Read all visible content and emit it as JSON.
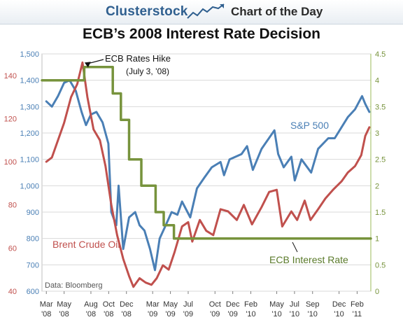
{
  "header": {
    "brand": "Clusterstock",
    "tagline": "Chart of the Day",
    "logo_icon": "rising-chart-icon"
  },
  "chart_data": {
    "type": "line",
    "title": "ECB’s 2008 Interest Rate Decision",
    "source_note": "Data: Bloomberg",
    "x_tick_labels": [
      {
        "month": "Mar",
        "year": "'08"
      },
      {
        "month": "May",
        "year": "'08"
      },
      {
        "month": "Aug",
        "year": "'08"
      },
      {
        "month": "Oct",
        "year": "'08"
      },
      {
        "month": "Dec",
        "year": "'08"
      },
      {
        "month": "Mar",
        "year": "'09"
      },
      {
        "month": "May",
        "year": "'09"
      },
      {
        "month": "Jul",
        "year": "'09"
      },
      {
        "month": "Oct",
        "year": "'09"
      },
      {
        "month": "Dec",
        "year": "'09"
      },
      {
        "month": "Feb",
        "year": "'10"
      },
      {
        "month": "May",
        "year": "'10"
      },
      {
        "month": "Jul",
        "year": "'10"
      },
      {
        "month": "Sep",
        "year": "'10"
      },
      {
        "month": "Dec",
        "year": "'10"
      },
      {
        "month": "Feb",
        "year": "'11"
      }
    ],
    "x_tick_dates": [
      "2008-03-01",
      "2008-05-01",
      "2008-08-01",
      "2008-10-01",
      "2008-12-01",
      "2009-03-01",
      "2009-05-01",
      "2009-07-01",
      "2009-10-01",
      "2009-12-01",
      "2010-02-01",
      "2010-05-01",
      "2010-07-01",
      "2010-09-01",
      "2010-12-01",
      "2011-02-01"
    ],
    "x_range": [
      "2008-02-15",
      "2011-03-20"
    ],
    "axes": {
      "sp500": {
        "ticks": [
          "600",
          "700",
          "800",
          "900",
          "1,000",
          "1,100",
          "1,200",
          "1,300",
          "1,400",
          "1,500"
        ],
        "range": [
          600,
          1500
        ],
        "color": "#4a7fb5"
      },
      "oil": {
        "ticks": [
          "40",
          "60",
          "80",
          "100",
          "120",
          "140"
        ],
        "range": [
          40,
          150
        ],
        "color": "#c0504d"
      },
      "rate": {
        "ticks": [
          "0",
          "0.5",
          "1",
          "1.5",
          "2",
          "2.5",
          "3",
          "3.5",
          "4",
          "4.5"
        ],
        "range": [
          0,
          4.5
        ],
        "color": "#77933c"
      }
    },
    "series": [
      {
        "name": "S&P 500",
        "axis": "sp500",
        "color": "#4a7fb5",
        "points": [
          [
            "2008-03-01",
            1320
          ],
          [
            "2008-03-20",
            1300
          ],
          [
            "2008-04-10",
            1340
          ],
          [
            "2008-05-01",
            1390
          ],
          [
            "2008-05-20",
            1400
          ],
          [
            "2008-06-10",
            1360
          ],
          [
            "2008-06-30",
            1280
          ],
          [
            "2008-07-15",
            1230
          ],
          [
            "2008-08-01",
            1270
          ],
          [
            "2008-08-20",
            1280
          ],
          [
            "2008-09-10",
            1240
          ],
          [
            "2008-09-30",
            1160
          ],
          [
            "2008-10-10",
            900
          ],
          [
            "2008-10-27",
            850
          ],
          [
            "2008-11-04",
            1000
          ],
          [
            "2008-11-20",
            760
          ],
          [
            "2008-12-10",
            880
          ],
          [
            "2008-12-31",
            900
          ],
          [
            "2009-01-15",
            850
          ],
          [
            "2009-02-01",
            830
          ],
          [
            "2009-02-20",
            760
          ],
          [
            "2009-03-09",
            680
          ],
          [
            "2009-03-25",
            800
          ],
          [
            "2009-04-15",
            850
          ],
          [
            "2009-05-05",
            900
          ],
          [
            "2009-05-25",
            890
          ],
          [
            "2009-06-10",
            940
          ],
          [
            "2009-07-08",
            880
          ],
          [
            "2009-07-31",
            990
          ],
          [
            "2009-08-25",
            1030
          ],
          [
            "2009-09-20",
            1070
          ],
          [
            "2009-10-20",
            1090
          ],
          [
            "2009-11-01",
            1040
          ],
          [
            "2009-11-20",
            1100
          ],
          [
            "2009-12-31",
            1120
          ],
          [
            "2010-01-19",
            1150
          ],
          [
            "2010-02-08",
            1060
          ],
          [
            "2010-03-10",
            1140
          ],
          [
            "2010-04-23",
            1210
          ],
          [
            "2010-05-06",
            1120
          ],
          [
            "2010-05-25",
            1070
          ],
          [
            "2010-06-20",
            1110
          ],
          [
            "2010-07-02",
            1020
          ],
          [
            "2010-07-25",
            1100
          ],
          [
            "2010-08-27",
            1050
          ],
          [
            "2010-09-20",
            1140
          ],
          [
            "2010-10-25",
            1180
          ],
          [
            "2010-11-16",
            1180
          ],
          [
            "2010-12-31",
            1260
          ],
          [
            "2011-01-25",
            1290
          ],
          [
            "2011-02-18",
            1340
          ],
          [
            "2011-03-01",
            1310
          ],
          [
            "2011-03-15",
            1280
          ]
        ]
      },
      {
        "name": "Brent Crude Oil",
        "axis": "oil",
        "color": "#c0504d",
        "points": [
          [
            "2008-03-01",
            100
          ],
          [
            "2008-03-20",
            102
          ],
          [
            "2008-04-10",
            110
          ],
          [
            "2008-05-01",
            118
          ],
          [
            "2008-05-25",
            130
          ],
          [
            "2008-06-15",
            136
          ],
          [
            "2008-07-03",
            146
          ],
          [
            "2008-07-20",
            130
          ],
          [
            "2008-08-10",
            115
          ],
          [
            "2008-09-01",
            110
          ],
          [
            "2008-09-20",
            98
          ],
          [
            "2008-10-10",
            80
          ],
          [
            "2008-10-30",
            66
          ],
          [
            "2008-11-20",
            55
          ],
          [
            "2008-12-10",
            47
          ],
          [
            "2008-12-25",
            42
          ],
          [
            "2009-01-15",
            46
          ],
          [
            "2009-02-05",
            44
          ],
          [
            "2009-02-25",
            43
          ],
          [
            "2009-03-15",
            46
          ],
          [
            "2009-04-05",
            52
          ],
          [
            "2009-04-25",
            50
          ],
          [
            "2009-05-15",
            58
          ],
          [
            "2009-06-10",
            70
          ],
          [
            "2009-07-01",
            72
          ],
          [
            "2009-07-15",
            63
          ],
          [
            "2009-08-10",
            73
          ],
          [
            "2009-09-01",
            68
          ],
          [
            "2009-09-25",
            66
          ],
          [
            "2009-10-20",
            78
          ],
          [
            "2009-11-15",
            77
          ],
          [
            "2009-12-15",
            73
          ],
          [
            "2010-01-08",
            80
          ],
          [
            "2010-02-05",
            71
          ],
          [
            "2010-03-10",
            79
          ],
          [
            "2010-04-05",
            86
          ],
          [
            "2010-05-01",
            87
          ],
          [
            "2010-05-20",
            70
          ],
          [
            "2010-06-20",
            77
          ],
          [
            "2010-07-10",
            73
          ],
          [
            "2010-08-05",
            82
          ],
          [
            "2010-08-25",
            73
          ],
          [
            "2010-09-20",
            78
          ],
          [
            "2010-10-15",
            83
          ],
          [
            "2010-11-10",
            87
          ],
          [
            "2010-12-10",
            91
          ],
          [
            "2010-12-31",
            95
          ],
          [
            "2011-01-25",
            98
          ],
          [
            "2011-02-15",
            103
          ],
          [
            "2011-03-01",
            112
          ],
          [
            "2011-03-15",
            116
          ]
        ]
      },
      {
        "name": "ECB Interest Rate",
        "axis": "rate",
        "color": "#77933c",
        "step": true,
        "points": [
          [
            "2008-02-15",
            4.0
          ],
          [
            "2008-07-09",
            4.25
          ],
          [
            "2008-10-15",
            3.75
          ],
          [
            "2008-11-12",
            3.25
          ],
          [
            "2008-12-10",
            2.5
          ],
          [
            "2009-01-21",
            2.0
          ],
          [
            "2009-03-11",
            1.5
          ],
          [
            "2009-04-08",
            1.25
          ],
          [
            "2009-05-13",
            1.0
          ],
          [
            "2011-03-20",
            1.0
          ]
        ]
      }
    ],
    "annotations": [
      {
        "text": "ECB Rates Hike",
        "sub": "(July 3, ’08)",
        "target_date": "2008-07-03",
        "target_oil": 146
      },
      {
        "text": "S&P 500",
        "series": "S&P 500"
      },
      {
        "text": "Brent Crude Oil",
        "series": "Brent Crude Oil"
      },
      {
        "text": "ECB Interest Rate",
        "series": "ECB Interest Rate"
      }
    ]
  }
}
